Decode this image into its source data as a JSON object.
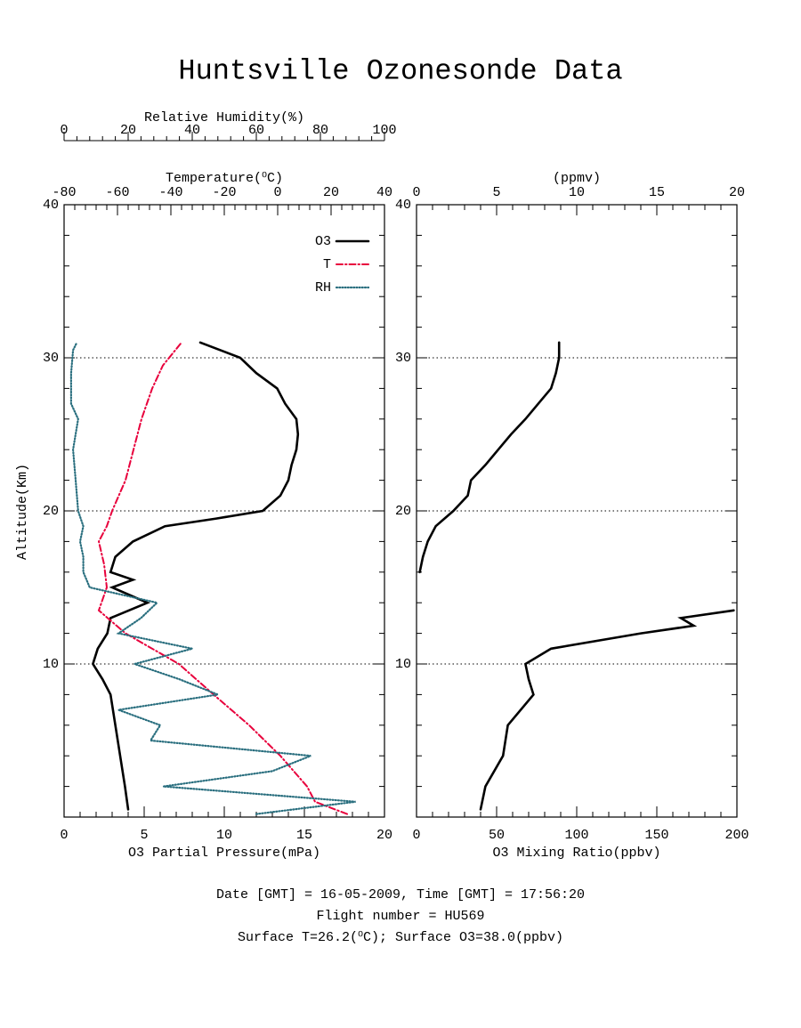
{
  "title": "Huntsville Ozonesonde Data",
  "footer": [
    "Date [GMT] = 16-05-2009,  Time [GMT] = 17:56:20",
    "Flight number = HU569",
    "Surface T=26.2(⁰C); Surface O3=38.0(ppbv)"
  ],
  "chart_data": [
    {
      "type": "line",
      "ylabel": "Altitude(Km)",
      "ylim": [
        0,
        40
      ],
      "yticks": [
        10,
        20,
        30,
        40
      ],
      "grid": true,
      "legend": "upper right",
      "xlabel": "O3 Partial Pressure(mPa)",
      "xlim": [
        0,
        20
      ],
      "xticks": [
        0,
        5,
        10,
        15,
        20
      ],
      "x2label": "Temperature(⁰C)",
      "x2lim": [
        -80,
        40
      ],
      "x2ticks": [
        -80,
        -60,
        -40,
        -20,
        0,
        20,
        40
      ],
      "x3label": "Relative Humidity(%)",
      "x3lim": [
        0,
        100
      ],
      "x3ticks": [
        0,
        20,
        40,
        60,
        80,
        100
      ],
      "series": [
        {
          "name": "O3",
          "color": "#000000",
          "style": "solid",
          "axis": "x",
          "altitude": [
            0.5,
            2,
            4,
            6,
            8,
            9,
            10,
            11,
            12,
            13,
            14,
            15,
            15.5,
            16,
            17,
            18,
            19,
            19.5,
            20,
            21,
            22,
            23,
            24,
            25,
            26,
            27,
            28,
            29,
            30,
            31
          ],
          "values": [
            4.0,
            3.8,
            3.5,
            3.2,
            2.9,
            2.4,
            1.8,
            2.1,
            2.7,
            2.9,
            5.2,
            3.0,
            4.3,
            2.9,
            3.2,
            4.3,
            6.3,
            9.5,
            12.4,
            13.5,
            14.0,
            14.2,
            14.5,
            14.6,
            14.5,
            13.8,
            13.3,
            12.0,
            11.0,
            8.5
          ]
        },
        {
          "name": "T",
          "color": "#e8003c",
          "style": "dashdot",
          "axis": "x2",
          "altitude": [
            0.2,
            1,
            2,
            4,
            6,
            8,
            10,
            12,
            13.5,
            15,
            16.5,
            18,
            19,
            20,
            22,
            24,
            26,
            28,
            29.5,
            31
          ],
          "values": [
            26,
            14,
            11,
            1,
            -10.7,
            -24,
            -37,
            -57,
            -67,
            -64,
            -65,
            -67,
            -64,
            -62,
            -57,
            -54,
            -51,
            -47,
            -43,
            -36
          ]
        },
        {
          "name": "RH",
          "color": "#2a6f7f",
          "style": "dotted",
          "axis": "x3",
          "altitude": [
            0.2,
            1,
            2,
            3,
            4,
            5,
            6,
            7,
            8,
            9,
            10,
            11,
            12,
            13,
            14,
            15,
            16,
            17,
            18,
            19,
            20,
            22,
            24,
            26,
            27,
            29,
            30.5,
            31
          ],
          "values": [
            60,
            91,
            31,
            65,
            77,
            27,
            30,
            17,
            48,
            36,
            22,
            40,
            17,
            24,
            29,
            8,
            6,
            6,
            5,
            6,
            4.4,
            3.6,
            2.8,
            4.4,
            2.2,
            2.2,
            2.8,
            4
          ]
        }
      ]
    },
    {
      "type": "line",
      "ylim": [
        0,
        40
      ],
      "yticks": [
        10,
        20,
        30,
        40
      ],
      "grid": true,
      "xlabel": "O3 Mixing Ratio(ppbv)",
      "xlim": [
        0,
        200
      ],
      "xticks": [
        0,
        50,
        100,
        150,
        200
      ],
      "x2label": "(ppmv)",
      "x2lim": [
        0,
        20
      ],
      "x2ticks": [
        0,
        5,
        10,
        15,
        20
      ],
      "series": [
        {
          "color": "#000000",
          "style": "solid",
          "axis": "x",
          "altitude": [
            0.5,
            2,
            4,
            6,
            8,
            9,
            10,
            11,
            12,
            12.5,
            13,
            13.5,
            14.5,
            16,
            17,
            18,
            19,
            20,
            21,
            22,
            23,
            24,
            25,
            26,
            27,
            28,
            29,
            30,
            31
          ],
          "values": [
            40,
            43,
            54,
            57,
            73,
            70,
            68,
            84,
            140,
            173,
            165,
            198,
            null,
            2,
            4,
            7,
            12,
            23,
            32,
            34,
            43,
            51,
            59,
            68,
            76,
            84,
            87,
            89,
            89
          ]
        }
      ]
    }
  ]
}
